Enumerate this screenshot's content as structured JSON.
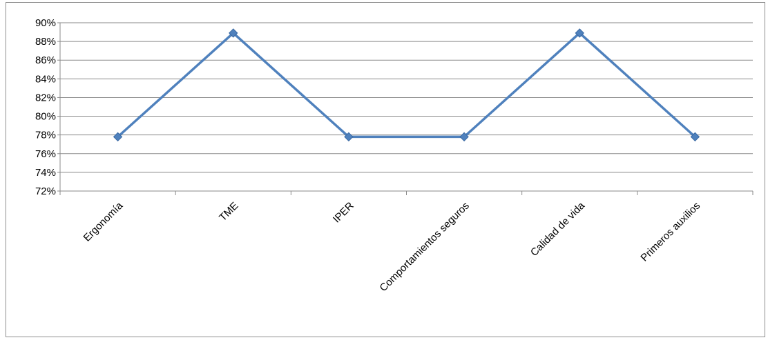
{
  "chart_data": {
    "type": "line",
    "title": "",
    "xlabel": "",
    "ylabel": "",
    "categories": [
      "Ergonomía",
      "TME",
      "IPER",
      "Comportamientos seguros",
      "Calidad de vida",
      "Primeros auxilios"
    ],
    "series": [
      {
        "values": [
          77.8,
          88.9,
          77.8,
          77.8,
          88.9,
          77.8
        ],
        "color": "#4f81bd"
      }
    ],
    "ylim": [
      72,
      90
    ],
    "yticks": [
      "90%",
      "88%",
      "86%",
      "84%",
      "82%",
      "80%",
      "78%",
      "76%",
      "74%",
      "72%"
    ],
    "grid": true,
    "legend": "none"
  }
}
